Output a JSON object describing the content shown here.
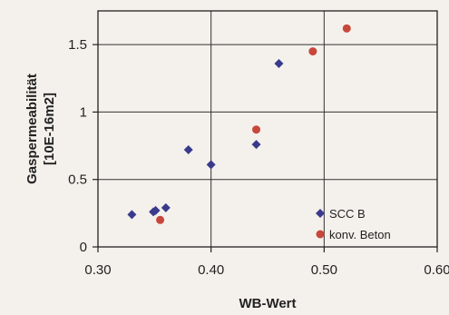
{
  "chart_data": {
    "type": "scatter",
    "xlabel": "WB-Wert",
    "ylabel_lines": [
      "Gaspermeabilität",
      "[10E-16m2]"
    ],
    "xlim": [
      0.3,
      0.6
    ],
    "ylim": [
      0,
      1.75
    ],
    "x_ticks": [
      0.3,
      0.4,
      0.5,
      0.6
    ],
    "x_tick_labels": [
      "0.30",
      "0.40",
      "0.50",
      "0.60"
    ],
    "y_ticks": [
      0,
      0.5,
      1,
      1.5
    ],
    "y_tick_labels": [
      "0",
      "0.5",
      "1",
      "1.5"
    ],
    "grid": true,
    "legend_position": "bottom-right",
    "series": [
      {
        "name": "SCC B",
        "marker": "diamond",
        "color": "#3a3a8c",
        "x": [
          0.33,
          0.349,
          0.351,
          0.36,
          0.38,
          0.4,
          0.44,
          0.46
        ],
        "y": [
          0.24,
          0.26,
          0.27,
          0.29,
          0.72,
          0.61,
          0.76,
          1.36
        ]
      },
      {
        "name": "konv. Beton",
        "marker": "circle",
        "color": "#c8463a",
        "x": [
          0.355,
          0.44,
          0.49,
          0.52
        ],
        "y": [
          0.2,
          0.87,
          1.45,
          1.62
        ]
      }
    ]
  }
}
